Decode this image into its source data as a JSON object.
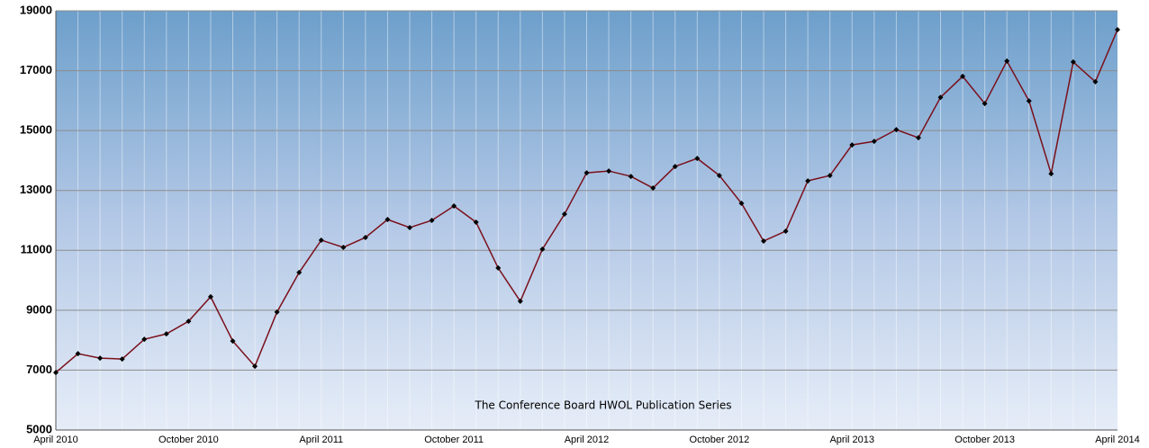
{
  "chart_data": {
    "type": "line",
    "annotation": "The Conference Board HWOL Publication Series",
    "categories": [
      "April 2010",
      null,
      null,
      null,
      null,
      null,
      "October 2010",
      null,
      null,
      null,
      null,
      null,
      "April 2011",
      null,
      null,
      null,
      null,
      null,
      "October 2011",
      null,
      null,
      null,
      null,
      null,
      "April 2012",
      null,
      null,
      null,
      null,
      null,
      "October 2012",
      null,
      null,
      null,
      null,
      null,
      "April 2013",
      null,
      null,
      null,
      null,
      null,
      "October 2013",
      null,
      null,
      null,
      null,
      null,
      "April 2014"
    ],
    "series": [
      {
        "name": "HWOL",
        "color": "#7a0f1a",
        "values": [
          6920,
          7550,
          7400,
          7370,
          8030,
          8210,
          8630,
          9450,
          7970,
          7130,
          8940,
          10260,
          11340,
          11100,
          11430,
          12030,
          11760,
          12000,
          12480,
          11940,
          10410,
          9300,
          11040,
          12210,
          13590,
          13650,
          13470,
          13080,
          13800,
          14070,
          13500,
          12570,
          11310,
          11640,
          13320,
          13500,
          14520,
          14640,
          15030,
          14760,
          16110,
          16810,
          15900,
          17320,
          15990,
          13560,
          17290,
          16630,
          18370
        ]
      }
    ],
    "ylim": [
      5000,
      19000
    ],
    "yticks": [
      5000,
      7000,
      9000,
      11000,
      13000,
      15000,
      17000,
      19000
    ],
    "grid": true
  }
}
